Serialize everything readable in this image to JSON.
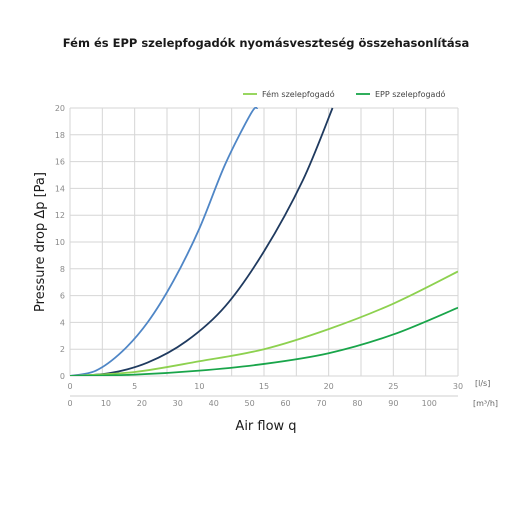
{
  "chart_data": {
    "type": "line",
    "title": "Fém és EPP szelepfogadók nyomásveszteség összehasonlítása",
    "xlabel": "Air flow q",
    "ylabel": "Pressure drop Δp [Pa]",
    "x_unit": "[l/s]",
    "x2_unit": "[m³/h]",
    "xlim": [
      0,
      30
    ],
    "ylim": [
      0,
      20
    ],
    "x_ticks": [
      0,
      5,
      10,
      15,
      20,
      25,
      30
    ],
    "x2_ticks": [
      0,
      10,
      20,
      30,
      40,
      50,
      60,
      70,
      80,
      90,
      100
    ],
    "y_ticks": [
      0,
      2,
      4,
      6,
      8,
      10,
      12,
      14,
      16,
      18,
      20
    ],
    "grid": true,
    "legend_position": "top-right",
    "series": [
      {
        "name": "",
        "color": "#4f86c6",
        "x": [
          0,
          2,
          4,
          6,
          8,
          10,
          12,
          14,
          14.5
        ],
        "y": [
          0,
          0.4,
          1.8,
          4.0,
          7.1,
          11.0,
          15.8,
          19.6,
          20
        ]
      },
      {
        "name": "",
        "color": "#1f3a5f",
        "x": [
          0,
          3,
          6,
          9,
          12,
          15,
          18,
          20.3
        ],
        "y": [
          0,
          0.2,
          1.0,
          2.6,
          5.2,
          9.3,
          14.6,
          20
        ]
      },
      {
        "name": "Fém szelepfogadó",
        "color": "#8dd14f",
        "x": [
          0,
          5,
          10,
          15,
          20,
          25,
          30
        ],
        "y": [
          0,
          0.3,
          1.1,
          2.0,
          3.5,
          5.4,
          7.8
        ]
      },
      {
        "name": "EPP szelepfogadó",
        "color": "#19a54a",
        "x": [
          0,
          5,
          10,
          15,
          20,
          25,
          30
        ],
        "y": [
          0,
          0.1,
          0.4,
          0.9,
          1.7,
          3.1,
          5.1
        ]
      }
    ]
  }
}
